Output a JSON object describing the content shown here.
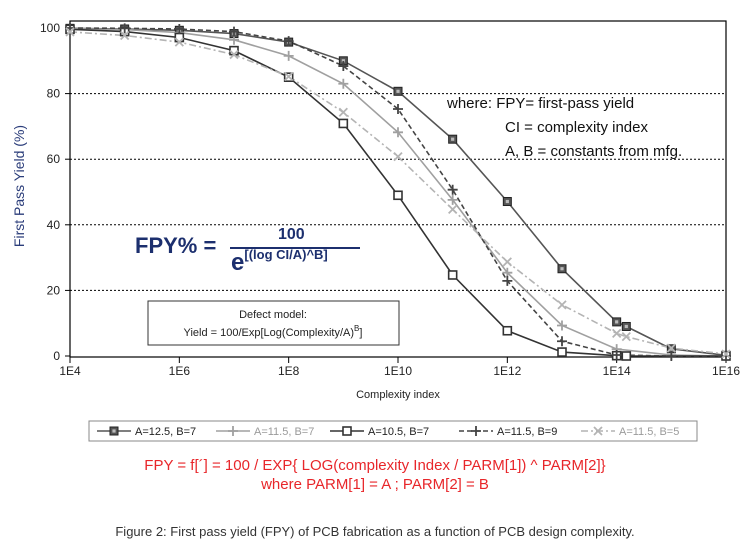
{
  "chart_data": {
    "type": "line",
    "xlabel": "Complexity index",
    "ylabel": "First Pass Yield (%)",
    "x_scale": "log",
    "xlim": [
      10000,
      10000000000000000
    ],
    "ylim": [
      0,
      100
    ],
    "x_ticks": [
      10000,
      1000000,
      100000000,
      10000000000,
      1000000000000,
      100000000000000,
      10000000000000000
    ],
    "x_tick_labels": [
      "1E4",
      "1E6",
      "1E8",
      "1E10",
      "1E12",
      "1E14",
      "1E16"
    ],
    "y_ticks": [
      0,
      20,
      40,
      60,
      80,
      100
    ],
    "y_tick_labels": [
      "0",
      "20",
      "40",
      "60",
      "80",
      "100"
    ],
    "grid": "horizontal dotted at 20, 40, 60, 80",
    "legend_position": "bottom",
    "series": [
      {
        "name": "A=12.5, B=7",
        "color": "#555555",
        "marker": "filled-square",
        "line": "solid",
        "points": [
          [
            10000,
            99.9
          ],
          [
            100000,
            99.7
          ],
          [
            1000000,
            99.3
          ],
          [
            10000000,
            98.3
          ],
          [
            100000000,
            95.7
          ],
          [
            1000000000,
            90.0
          ],
          [
            10000000000,
            80.7
          ],
          [
            100000000000,
            66.1
          ],
          [
            1000000000000,
            47.1
          ],
          [
            10000000000000,
            26.6
          ],
          [
            100000000000000,
            10.4
          ],
          [
            150000000000000,
            9.0
          ],
          [
            1000000000000000,
            2.2
          ],
          [
            10000000000000000,
            0.2
          ]
        ]
      },
      {
        "name": "A=11.5, B=7",
        "color": "#a0a0a0",
        "marker": "plus",
        "line": "solid",
        "points": [
          [
            10000,
            99.8
          ],
          [
            100000,
            99.5
          ],
          [
            1000000,
            98.6
          ],
          [
            10000000,
            96.4
          ],
          [
            100000000,
            91.5
          ],
          [
            1000000000,
            83.0
          ],
          [
            10000000000,
            68.2
          ],
          [
            100000000000,
            47.6
          ],
          [
            1000000000000,
            25.4
          ],
          [
            10000000000000,
            9.3
          ],
          [
            100000000000000,
            2.1
          ],
          [
            1000000000000000,
            0.3
          ],
          [
            10000000000000000,
            0.0
          ]
        ]
      },
      {
        "name": "A=10.5, B=7",
        "color": "#333333",
        "marker": "open-square",
        "line": "solid",
        "points": [
          [
            10000,
            99.6
          ],
          [
            100000,
            98.9
          ],
          [
            1000000,
            97.1
          ],
          [
            10000000,
            93.1
          ],
          [
            100000000,
            85.0
          ],
          [
            1000000000,
            70.9
          ],
          [
            10000000000,
            49.0
          ],
          [
            100000000000,
            24.7
          ],
          [
            1000000000000,
            7.7
          ],
          [
            10000000000000,
            1.2
          ],
          [
            100000000000000,
            0.1
          ],
          [
            150000000000000,
            0.0
          ],
          [
            10000000000000000,
            0.0
          ]
        ]
      },
      {
        "name": "A=11.5, B=9",
        "color": "#444444",
        "marker": "plus",
        "line": "dashed",
        "points": [
          [
            10000,
            100.0
          ],
          [
            100000,
            99.9
          ],
          [
            1000000,
            99.7
          ],
          [
            10000000,
            98.9
          ],
          [
            100000000,
            96.0
          ],
          [
            1000000000,
            88.4
          ],
          [
            10000000000,
            75.3
          ],
          [
            100000000000,
            50.7
          ],
          [
            1000000000000,
            22.9
          ],
          [
            10000000000000,
            4.5
          ],
          [
            100000000000000,
            0.3
          ],
          [
            1000000000000000,
            0.0
          ],
          [
            10000000000000000,
            0.0
          ]
        ]
      },
      {
        "name": "A=11.5, B=5",
        "color": "#b4b4b4",
        "marker": "x",
        "line": "dashdot",
        "points": [
          [
            10000,
            98.8
          ],
          [
            100000,
            97.7
          ],
          [
            1000000,
            95.7
          ],
          [
            10000000,
            91.9
          ],
          [
            100000000,
            85.2
          ],
          [
            1000000000,
            74.3
          ],
          [
            10000000000,
            60.8
          ],
          [
            100000000000,
            44.7
          ],
          [
            1000000000000,
            28.7
          ],
          [
            10000000000000,
            15.6
          ],
          [
            100000000000000,
            6.9
          ],
          [
            150000000000000,
            5.9
          ],
          [
            1000000000000000,
            2.4
          ],
          [
            10000000000000000,
            0.6
          ]
        ]
      }
    ]
  },
  "annotations": {
    "where_lines": [
      "where: FPY= first-pass yield",
      "CI = complexity index",
      "A, B = constants from mfg."
    ],
    "defect_model_title": "Defect model:",
    "defect_model_formula": "Yield = 100/Exp[Log(Complexity/A)",
    "defect_model_sup": "B",
    "defect_model_close": "]",
    "fpy_lhs": "FPY% =",
    "fpy_numerator": "100",
    "fpy_base": "e",
    "fpy_exponent": "[(log CI/A)^B]"
  },
  "formula_lines": [
    "FPY = f[´] = 100 / EXP{ LOG(complexity Index / PARM[1]) ^ PARM[2]}",
    "where PARM[1] = A ;    PARM[2] = B"
  ],
  "caption": "Figure 2: First pass yield (FPY) of PCB fabrication as a function of PCB design complexity."
}
